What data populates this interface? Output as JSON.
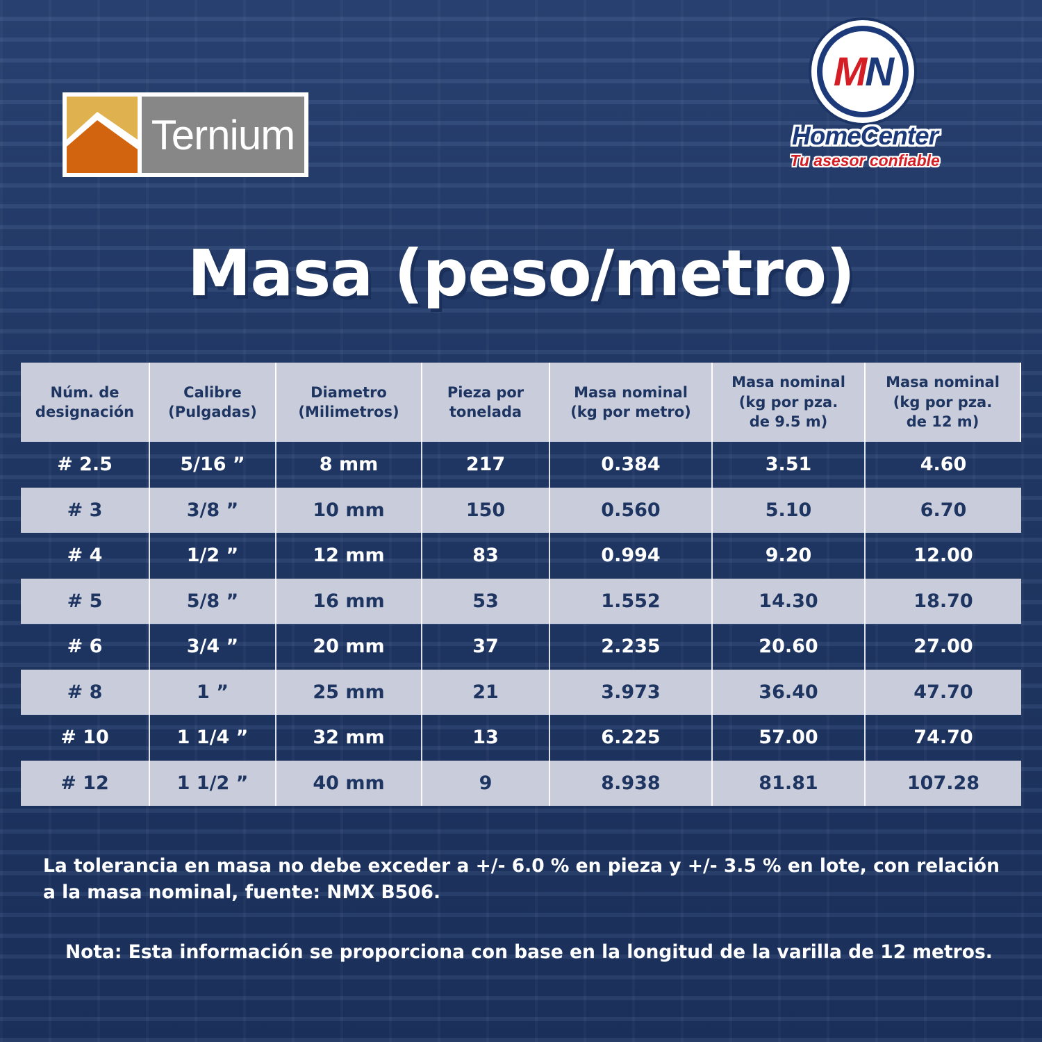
{
  "brand_left": {
    "name": "Ternium",
    "colors": {
      "gold": "#e0b24f",
      "orange": "#d2640f",
      "gray": "#878787"
    }
  },
  "brand_right": {
    "monogram_m": "M",
    "monogram_n": "N",
    "name": "HomeCenter",
    "tagline": "Tu asesor confiable",
    "colors": {
      "red": "#d41d24",
      "navy": "#1c3a7a"
    }
  },
  "title": "Masa (peso/metro)",
  "table": {
    "headers": [
      [
        "Núm. de",
        "designación"
      ],
      [
        "Calibre",
        "(Pulgadas)"
      ],
      [
        "Diametro",
        "(Milimetros)"
      ],
      [
        "Pieza por",
        "tonelada"
      ],
      [
        "Masa nominal",
        "(kg por metro)"
      ],
      [
        "Masa nominal",
        "(kg por pza.",
        "de 9.5 m)"
      ],
      [
        "Masa nominal",
        "(kg por pza.",
        "de 12 m)"
      ]
    ],
    "rows": [
      [
        "# 2.5",
        "5/16 ”",
        "8 mm",
        "217",
        "0.384",
        "3.51",
        "4.60"
      ],
      [
        "# 3",
        "3/8 ”",
        "10 mm",
        "150",
        "0.560",
        "5.10",
        "6.70"
      ],
      [
        "# 4",
        "1/2 ”",
        "12 mm",
        "83",
        "0.994",
        "9.20",
        "12.00"
      ],
      [
        "# 5",
        "5/8 ”",
        "16 mm",
        "53",
        "1.552",
        "14.30",
        "18.70"
      ],
      [
        "# 6",
        "3/4 ”",
        "20 mm",
        "37",
        "2.235",
        "20.60",
        "27.00"
      ],
      [
        "# 8",
        "1 ”",
        "25 mm",
        "21",
        "3.973",
        "36.40",
        "47.70"
      ],
      [
        "# 10",
        "1 1/4 ”",
        "32 mm",
        "13",
        "6.225",
        "57.00",
        "74.70"
      ],
      [
        "# 12",
        "1 1/2 ”",
        "40 mm",
        "9",
        "8.938",
        "81.81",
        "107.28"
      ]
    ],
    "colors": {
      "shaded_row": "#c9ccdb",
      "dark_text": "#1d3560"
    }
  },
  "tolerance_text": "La tolerancia en masa no debe exceder a +/- 6.0 % en pieza y +/- 3.5 % en lote, con relación a la masa nominal, fuente: NMX B506.",
  "note_text": "Nota: Esta información se proporciona con base en la longitud de la varilla de 12 metros.",
  "background": {
    "base": "#223a68"
  }
}
